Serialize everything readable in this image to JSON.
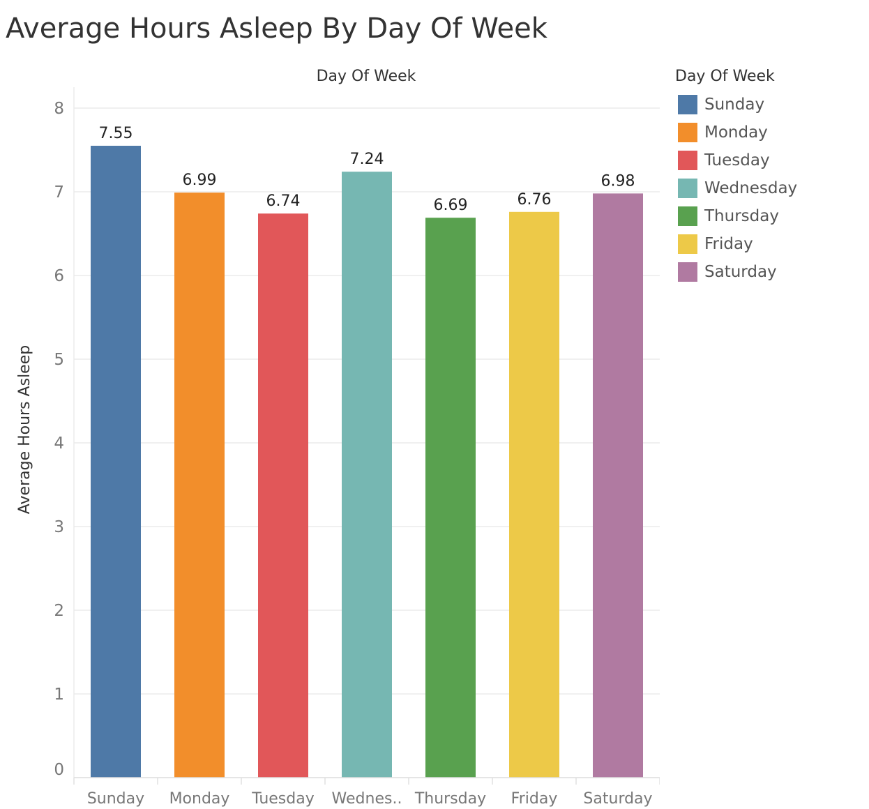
{
  "title": "Average Hours Asleep By Day Of Week",
  "chart_data": {
    "type": "bar",
    "xlabel": "Day Of Week",
    "ylabel": "Average Hours Asleep",
    "categories": [
      "Sunday",
      "Monday",
      "Tuesday",
      "Wednesday",
      "Thursday",
      "Friday",
      "Saturday"
    ],
    "tick_labels": [
      "Sunday",
      "Monday",
      "Tuesday",
      "Wednes..",
      "Thursday",
      "Friday",
      "Saturday"
    ],
    "values": [
      7.55,
      6.99,
      6.74,
      7.24,
      6.69,
      6.76,
      6.98
    ],
    "data_labels": [
      "7.55",
      "6.99",
      "6.74",
      "7.24",
      "6.69",
      "6.76",
      "6.98"
    ],
    "colors": [
      "#4e79a7",
      "#f28e2b",
      "#e15759",
      "#76b7b2",
      "#59a14f",
      "#edc948",
      "#b07aa1"
    ],
    "ylim": [
      0,
      8
    ],
    "yticks": [
      0,
      1,
      2,
      3,
      4,
      5,
      6,
      7,
      8
    ],
    "grid": true,
    "legend": {
      "title": "Day Of Week",
      "position": "right",
      "items": [
        "Sunday",
        "Monday",
        "Tuesday",
        "Wednesday",
        "Thursday",
        "Friday",
        "Saturday"
      ]
    }
  }
}
